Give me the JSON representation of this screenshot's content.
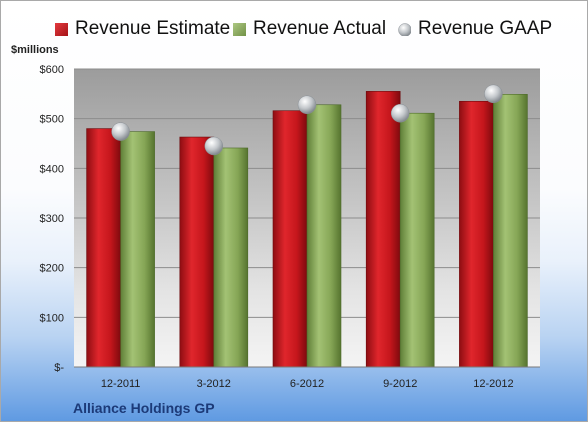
{
  "chart_data": {
    "type": "bar",
    "categories": [
      "12-2011",
      "3-2012",
      "6-2012",
      "9-2012",
      "12-2012"
    ],
    "series": [
      {
        "name": "Revenue Estimate",
        "kind": "bar",
        "values": [
          480,
          463,
          516,
          555,
          535
        ]
      },
      {
        "name": "Revenue Actual",
        "kind": "bar",
        "values": [
          474,
          441,
          528,
          511,
          549
        ]
      },
      {
        "name": "Revenue GAAP",
        "kind": "marker",
        "values": [
          474,
          445,
          528,
          511,
          550
        ]
      }
    ],
    "ylabel": "$millions",
    "ylim": [
      0,
      600
    ],
    "yticks": [
      0,
      100,
      200,
      300,
      400,
      500,
      600
    ],
    "ytick_labels": [
      "$-",
      "$100",
      "$200",
      "$300",
      "$400",
      "$500",
      "$600"
    ],
    "grid": true,
    "legend_position": "top",
    "colors": {
      "estimate": "#c8161d",
      "actual": "#8aab5a",
      "gaap": "#c0c4c8",
      "company_text": "#1c3a78"
    }
  },
  "company": "Alliance Holdings GP"
}
